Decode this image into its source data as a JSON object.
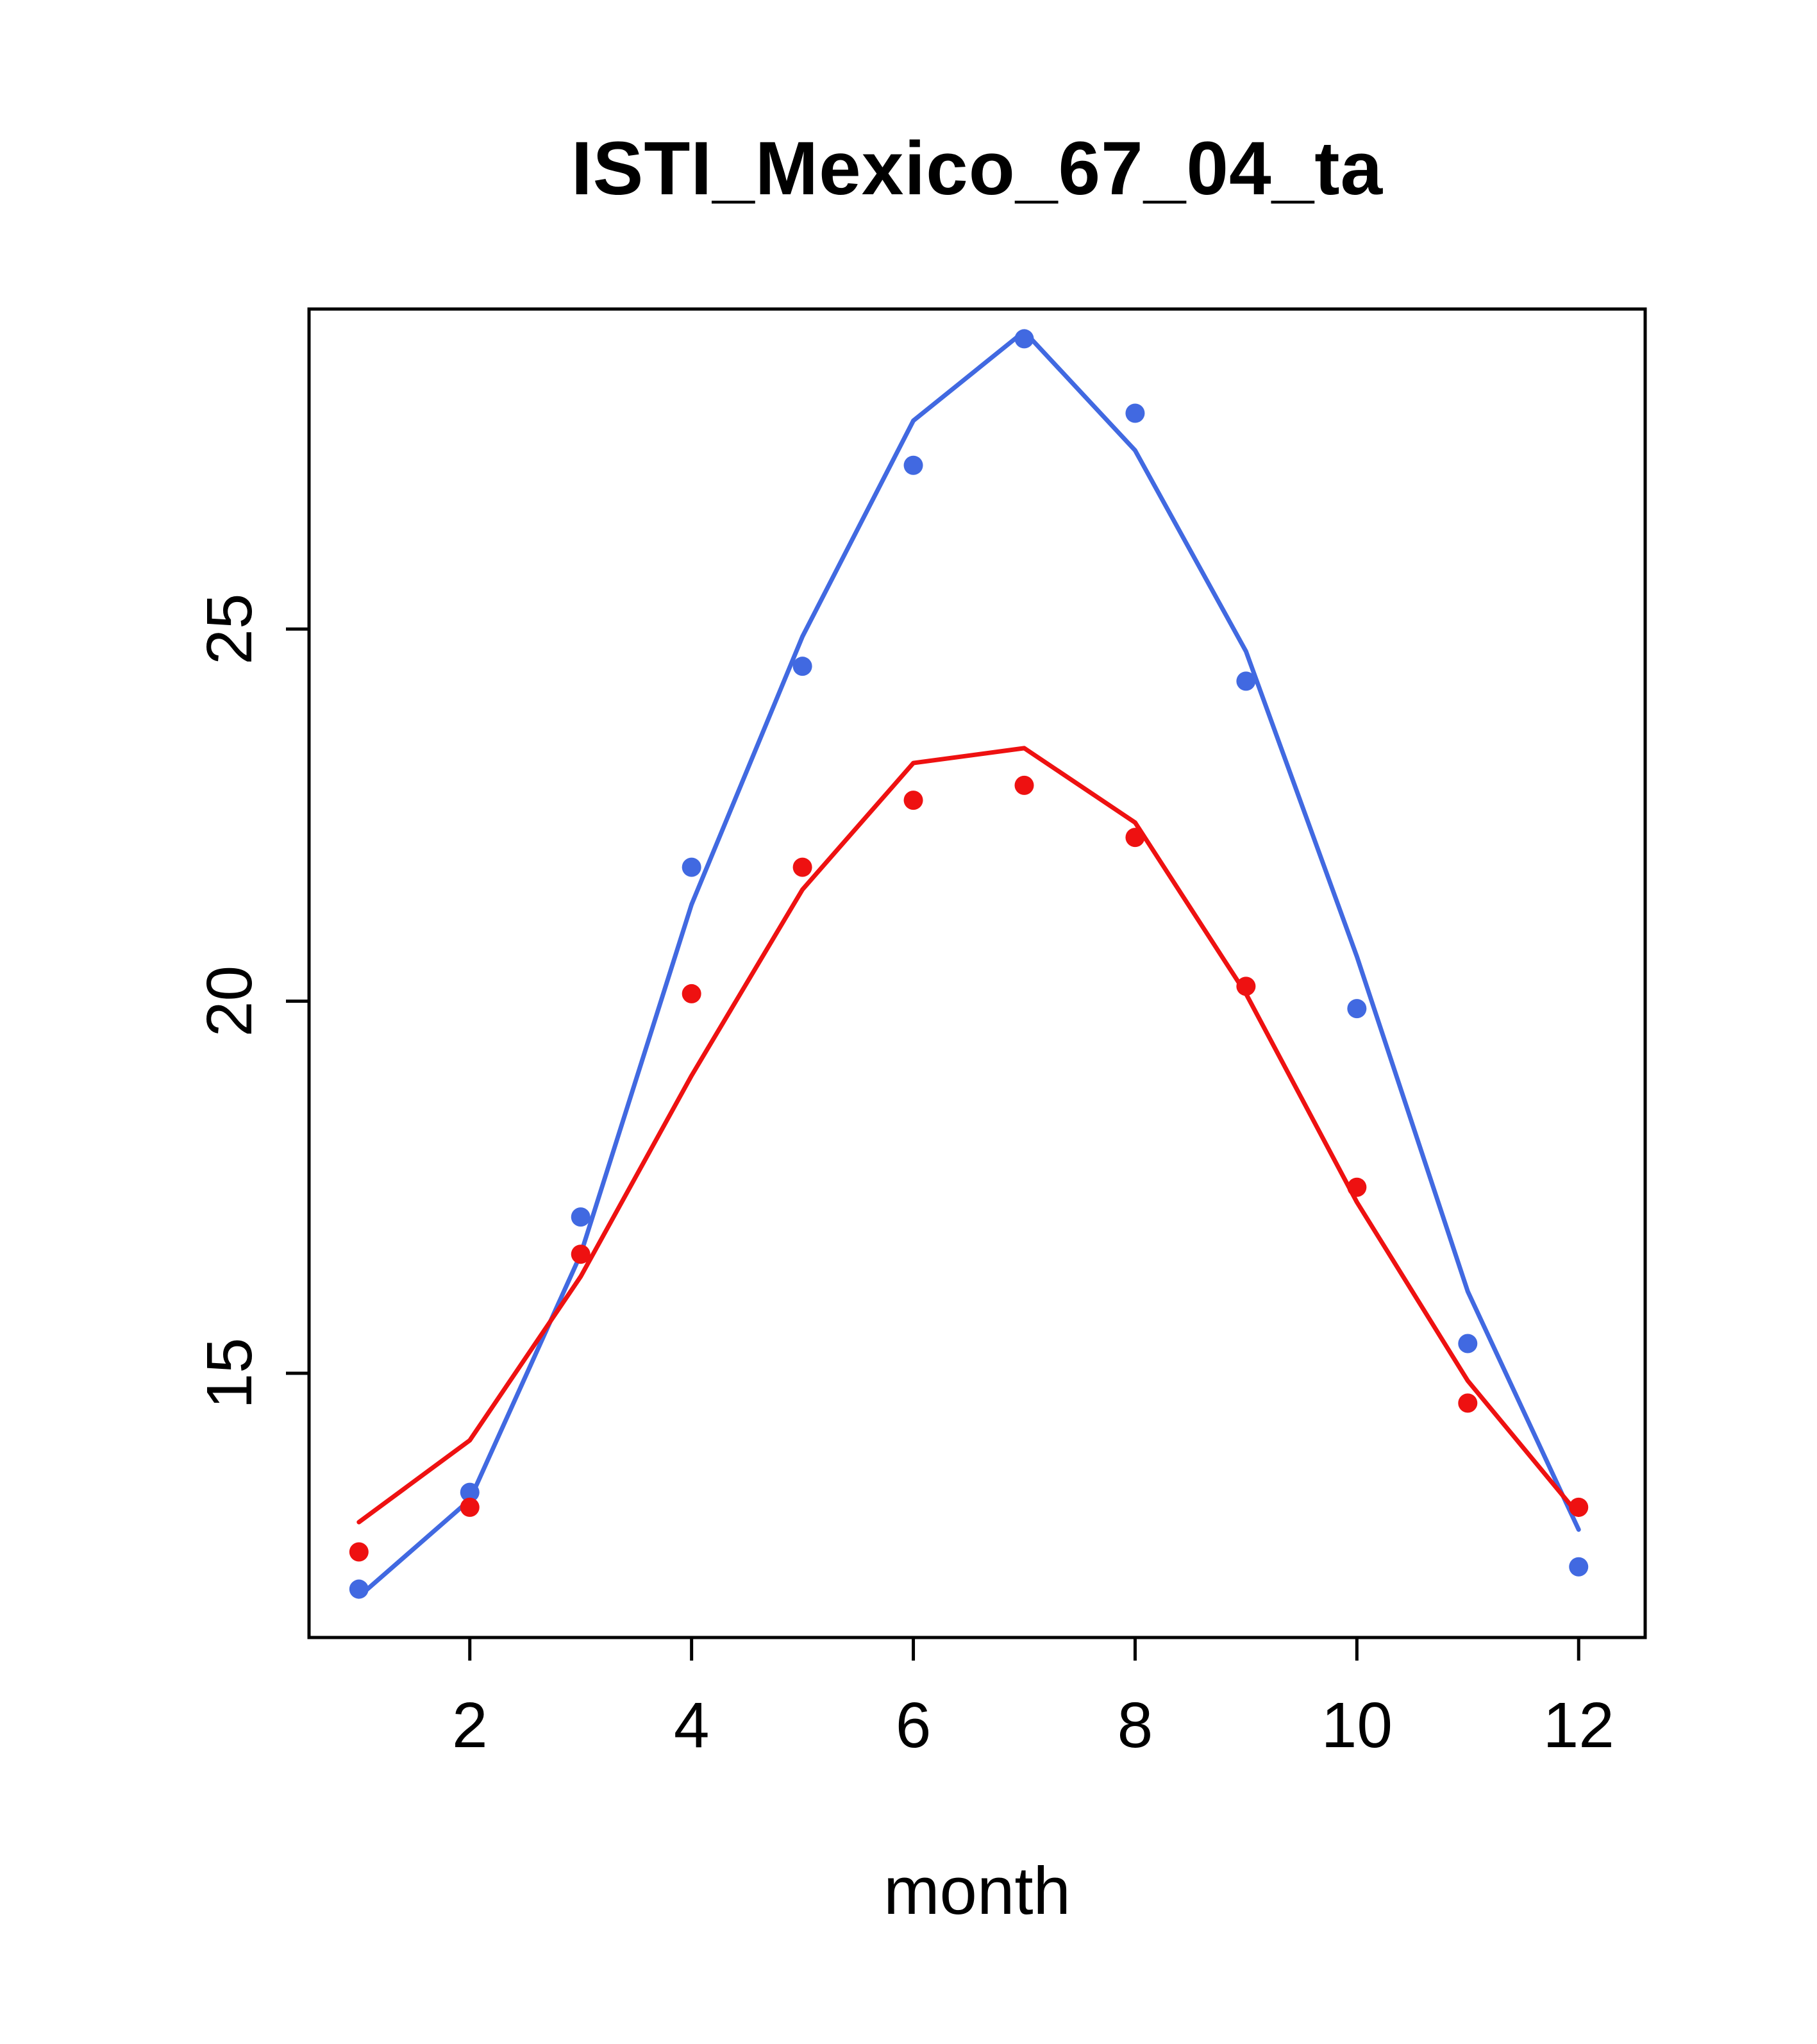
{
  "title": "ISTI_Mexico_67_04_ta",
  "chart_data": {
    "type": "line",
    "title": "ISTI_Mexico_67_04_ta",
    "xlabel": "month",
    "ylabel": "",
    "x": [
      1,
      2,
      3,
      4,
      5,
      6,
      7,
      8,
      9,
      10,
      11,
      12
    ],
    "x_ticks": [
      2,
      4,
      6,
      8,
      10,
      12
    ],
    "y_ticks": [
      15,
      20,
      25
    ],
    "xlim": [
      0.55,
      12.6
    ],
    "ylim": [
      11.45,
      29.3
    ],
    "grid": false,
    "legend": "none",
    "series": [
      {
        "name": "blue-line-fit",
        "style": "line",
        "color": "#4169E1",
        "values": [
          12.0,
          13.3,
          16.6,
          21.3,
          24.9,
          27.8,
          29.0,
          27.4,
          24.7,
          20.6,
          16.1,
          12.9
        ]
      },
      {
        "name": "red-line-fit",
        "style": "line",
        "color": "#EE1111",
        "values": [
          13.0,
          14.1,
          16.3,
          19.0,
          21.5,
          23.2,
          23.4,
          22.4,
          20.1,
          17.3,
          14.9,
          13.1
        ]
      },
      {
        "name": "blue-points",
        "style": "points",
        "color": "#4169E1",
        "values": [
          12.1,
          13.4,
          17.1,
          21.8,
          24.5,
          27.2,
          28.9,
          27.9,
          24.3,
          19.9,
          15.4,
          12.4
        ]
      },
      {
        "name": "red-points",
        "style": "points",
        "color": "#EE1111",
        "values": [
          12.6,
          13.2,
          16.6,
          20.1,
          21.8,
          22.7,
          22.9,
          22.2,
          20.2,
          17.5,
          14.6,
          13.2
        ]
      }
    ],
    "axis_color": "#000000"
  }
}
